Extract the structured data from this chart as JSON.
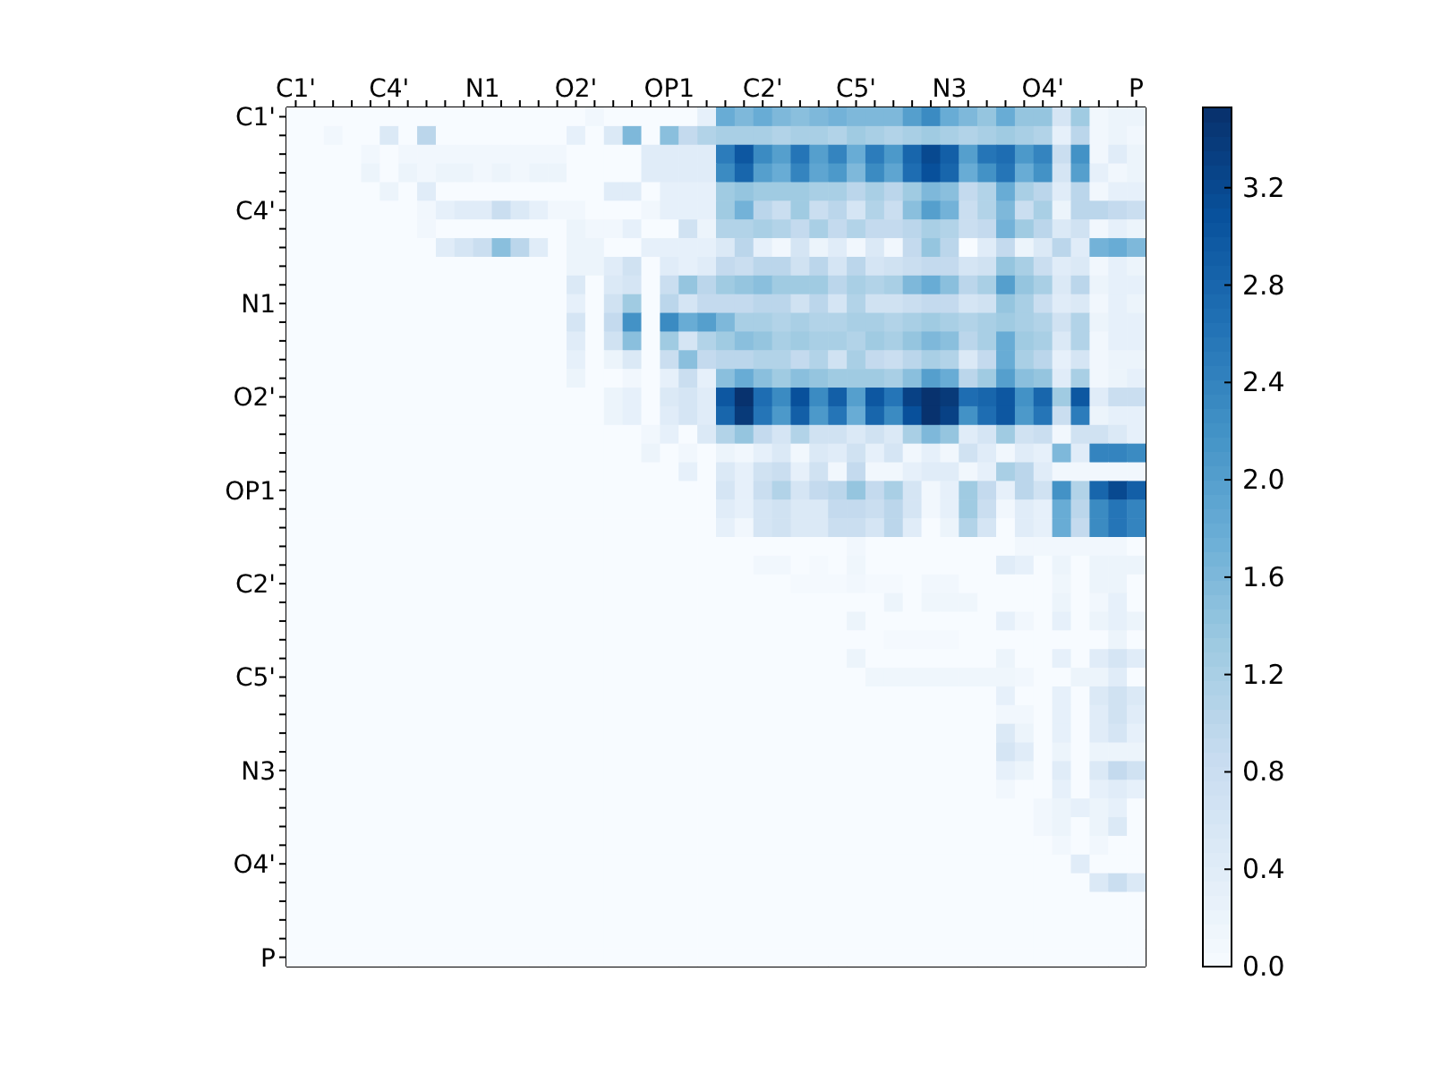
{
  "chart_data": {
    "type": "heatmap",
    "categories": [
      "C1'",
      null,
      null,
      null,
      null,
      "C4'",
      null,
      null,
      null,
      null,
      "N1",
      null,
      null,
      null,
      null,
      "O2'",
      null,
      null,
      null,
      null,
      "OP1",
      null,
      null,
      null,
      null,
      "C2'",
      null,
      null,
      null,
      null,
      "C5'",
      null,
      null,
      null,
      null,
      "N3",
      null,
      null,
      null,
      null,
      "O4'",
      null,
      null,
      null,
      null,
      "P"
    ],
    "y_categories": [
      "C1'",
      null,
      null,
      null,
      null,
      "C4'",
      null,
      null,
      null,
      null,
      "N1",
      null,
      null,
      null,
      null,
      "O2'",
      null,
      null,
      null,
      null,
      "OP1",
      null,
      null,
      null,
      null,
      "C2'",
      null,
      null,
      null,
      null,
      "C5'",
      null,
      null,
      null,
      null,
      "N3",
      null,
      null,
      null,
      null,
      "O4'",
      null,
      null,
      null,
      null,
      "P"
    ],
    "clim": [
      0,
      3.53
    ],
    "cticks": [
      {
        "value": 0,
        "label": "0.0"
      },
      {
        "value": 0.4,
        "label": "0.4"
      },
      {
        "value": 0.8,
        "label": "0.8"
      },
      {
        "value": 1.2,
        "label": "1.2"
      },
      {
        "value": 1.6,
        "label": "1.6"
      },
      {
        "value": 2,
        "label": "2.0"
      },
      {
        "value": 2.4,
        "label": "2.4"
      },
      {
        "value": 2.8,
        "label": "2.8"
      },
      {
        "value": 3.2,
        "label": "3.2"
      }
    ],
    "cells": [
      [
        0,
        0,
        0,
        0,
        0,
        0,
        0,
        0,
        0,
        0,
        0,
        0,
        0,
        0,
        0,
        0,
        0.1,
        0,
        0,
        0,
        0,
        0,
        0.3,
        1.8,
        1.6,
        1.8,
        1.6,
        1.5,
        1.6,
        1.7,
        1.6,
        1.6,
        1.6,
        2.0,
        2.3,
        1.8,
        1.6,
        1.4,
        1.8,
        1.4,
        1.4,
        0.6,
        1.3,
        0.1,
        0.2,
        0.2
      ],
      [
        0,
        0,
        0.1,
        0,
        0,
        0.5,
        0,
        1.0,
        0,
        0,
        0,
        0,
        0,
        0,
        0,
        0.3,
        0,
        0.5,
        1.6,
        0,
        1.5,
        0.9,
        1.1,
        1.2,
        1.2,
        1.2,
        1.1,
        1.2,
        1.2,
        1.1,
        1.3,
        1.2,
        1.1,
        1.2,
        1.3,
        1.2,
        1.1,
        1.2,
        1.3,
        1.2,
        1.1,
        0.3,
        1.0,
        0.1,
        0.2,
        0.1
      ],
      [
        0,
        0,
        0,
        0,
        0.1,
        0,
        0.1,
        0.1,
        0.1,
        0.1,
        0.1,
        0.1,
        0.1,
        0.1,
        0.1,
        0,
        0,
        0,
        0,
        0.4,
        0.4,
        0.4,
        0.4,
        2.5,
        3.0,
        2.3,
        2.0,
        2.6,
        2.0,
        2.4,
        1.8,
        2.5,
        2.1,
        2.8,
        3.2,
        2.9,
        2.0,
        2.6,
        2.7,
        2.1,
        2.4,
        0.8,
        2.2,
        0.1,
        0.4,
        0.2
      ],
      [
        0,
        0,
        0,
        0,
        0.2,
        0,
        0.2,
        0.1,
        0.2,
        0.2,
        0.1,
        0.2,
        0.1,
        0.2,
        0.2,
        0,
        0,
        0,
        0,
        0.4,
        0.4,
        0.4,
        0.4,
        2.3,
        2.8,
        2.0,
        1.8,
        2.4,
        1.9,
        2.1,
        1.6,
        2.3,
        1.9,
        2.7,
        3.1,
        2.8,
        1.8,
        2.2,
        2.6,
        1.8,
        2.2,
        0.6,
        2.0,
        0.3,
        0.1,
        0.2
      ],
      [
        0,
        0,
        0,
        0,
        0,
        0.2,
        0,
        0.4,
        0,
        0,
        0,
        0,
        0,
        0,
        0,
        0,
        0,
        0.4,
        0.4,
        0,
        0.3,
        0.3,
        0.3,
        1.3,
        1.4,
        1.3,
        1.3,
        1.3,
        1.2,
        1.2,
        1.0,
        1.2,
        1.0,
        1.3,
        1.6,
        1.5,
        0.9,
        1.1,
        1.8,
        1.2,
        1.0,
        0.4,
        1.0,
        0.1,
        0.3,
        0.3
      ],
      [
        0,
        0,
        0,
        0,
        0,
        0,
        0,
        0.1,
        0.3,
        0.4,
        0.4,
        0.8,
        0.5,
        0.3,
        0.1,
        0.1,
        0,
        0,
        0,
        0.1,
        0.3,
        0.3,
        0.3,
        1.3,
        1.7,
        1.0,
        0.8,
        1.3,
        0.8,
        1.0,
        0.6,
        1.1,
        0.8,
        1.5,
        2.0,
        1.7,
        0.8,
        1.1,
        1.6,
        0.8,
        1.2,
        0.2,
        1.0,
        1.0,
        0.9,
        0.8
      ],
      [
        0,
        0,
        0,
        0,
        0,
        0,
        0,
        0.1,
        0,
        0,
        0,
        0,
        0,
        0,
        0,
        0.2,
        0.1,
        0.1,
        0.3,
        0,
        0,
        0.7,
        0.2,
        1.1,
        1.1,
        1.2,
        1.1,
        0.9,
        1.2,
        0.9,
        1.1,
        0.9,
        0.9,
        1.0,
        1.2,
        1.1,
        0.8,
        0.9,
        1.7,
        1.3,
        1.0,
        0.5,
        0.7,
        0.1,
        0.3,
        0.2
      ],
      [
        0,
        0,
        0,
        0,
        0,
        0,
        0,
        0,
        0.4,
        0.6,
        0.8,
        1.5,
        1.0,
        0.4,
        0,
        0.2,
        0.2,
        0,
        0,
        0.3,
        0.3,
        0.3,
        0.3,
        0.5,
        1.0,
        0.3,
        0.1,
        0.6,
        0.2,
        0.4,
        0.1,
        0.5,
        0.1,
        0.9,
        1.4,
        1.0,
        0,
        0.4,
        0.9,
        0.2,
        0.5,
        1.0,
        0.4,
        1.7,
        1.8,
        1.6
      ],
      [
        0,
        0,
        0,
        0,
        0,
        0,
        0,
        0,
        0,
        0,
        0,
        0,
        0,
        0,
        0,
        0.2,
        0.2,
        0.4,
        0.7,
        0,
        0.4,
        0.3,
        0.4,
        0.9,
        0.8,
        1.0,
        1.0,
        0.7,
        1.0,
        0.6,
        1.0,
        0.6,
        0.7,
        0.8,
        0.9,
        0.9,
        0.6,
        0.7,
        1.4,
        1.2,
        0.8,
        0.4,
        0.5,
        0.1,
        0.3,
        0.2
      ],
      [
        0,
        0,
        0,
        0,
        0,
        0,
        0,
        0,
        0,
        0,
        0,
        0,
        0,
        0,
        0,
        0.5,
        0,
        0.5,
        0.6,
        0,
        0.8,
        1.4,
        1.0,
        1.3,
        1.4,
        1.5,
        1.3,
        1.3,
        1.3,
        1.0,
        1.2,
        1.1,
        1.2,
        1.6,
        1.8,
        1.5,
        1.0,
        1.2,
        2.0,
        1.4,
        1.2,
        0.5,
        1.0,
        0.2,
        0.3,
        0.3
      ],
      [
        0,
        0,
        0,
        0,
        0,
        0,
        0,
        0,
        0,
        0,
        0,
        0,
        0,
        0,
        0,
        0.3,
        0,
        0.7,
        1.3,
        0,
        1.0,
        0.6,
        0.9,
        0.9,
        0.9,
        1.0,
        1.0,
        0.7,
        1.0,
        0.6,
        1.1,
        0.7,
        0.7,
        0.8,
        0.9,
        0.9,
        0.6,
        0.7,
        1.4,
        1.2,
        0.8,
        0.4,
        0.5,
        0.1,
        0.3,
        0.2
      ],
      [
        0,
        0,
        0,
        0,
        0,
        0,
        0,
        0,
        0,
        0,
        0,
        0,
        0,
        0,
        0,
        0.6,
        0,
        0.9,
        2.2,
        0,
        2.3,
        1.8,
        2.0,
        1.6,
        1.2,
        1.2,
        1.1,
        1.2,
        1.1,
        1.1,
        1.2,
        1.2,
        1.1,
        1.2,
        1.3,
        1.2,
        1.1,
        1.2,
        1.3,
        1.2,
        1.1,
        0.7,
        1.1,
        0.2,
        0.3,
        0.3
      ],
      [
        0,
        0,
        0,
        0,
        0,
        0,
        0,
        0,
        0,
        0,
        0,
        0,
        0,
        0,
        0,
        0.4,
        0,
        0.7,
        1.5,
        0,
        1.3,
        0.6,
        1.1,
        1.3,
        1.5,
        1.4,
        1.2,
        1.3,
        1.2,
        1.2,
        1.1,
        1.3,
        1.2,
        1.4,
        1.6,
        1.5,
        1.0,
        1.2,
        1.8,
        1.3,
        1.2,
        0.5,
        1.1,
        0.1,
        0.3,
        0.3
      ],
      [
        0,
        0,
        0,
        0,
        0,
        0,
        0,
        0,
        0,
        0,
        0,
        0,
        0,
        0,
        0,
        0.3,
        0,
        0.2,
        0.5,
        0,
        0.8,
        1.5,
        0.9,
        1.0,
        1.0,
        1.1,
        1.1,
        0.9,
        1.1,
        0.7,
        1.2,
        0.9,
        0.8,
        1.0,
        1.2,
        1.1,
        0.5,
        0.9,
        1.8,
        1.2,
        1.0,
        0.3,
        0.6,
        0.1,
        0.2,
        0.2
      ],
      [
        0,
        0,
        0,
        0,
        0,
        0,
        0,
        0,
        0,
        0,
        0,
        0,
        0,
        0,
        0,
        0.2,
        0,
        0,
        0.1,
        0,
        0.3,
        0.8,
        0.3,
        1.5,
        1.8,
        1.5,
        1.3,
        1.5,
        1.4,
        1.3,
        1.3,
        1.3,
        1.2,
        1.5,
        2.0,
        1.8,
        1.0,
        1.3,
        2.0,
        1.5,
        1.4,
        0.4,
        1.2,
        0.1,
        0.2,
        0.3
      ],
      [
        0,
        0,
        0,
        0,
        0,
        0,
        0,
        0,
        0,
        0,
        0,
        0,
        0,
        0,
        0,
        0,
        0,
        0.2,
        0.3,
        0,
        0.5,
        0.6,
        0.4,
        3.0,
        3.5,
        2.7,
        2.3,
        3.1,
        2.3,
        2.9,
        2.0,
        3.0,
        2.6,
        3.3,
        3.5,
        3.4,
        2.7,
        2.8,
        3.0,
        2.2,
        2.8,
        1.3,
        3.0,
        0.4,
        0.8,
        0.8
      ],
      [
        0,
        0,
        0,
        0,
        0,
        0,
        0,
        0,
        0,
        0,
        0,
        0,
        0,
        0,
        0,
        0,
        0,
        0.2,
        0.3,
        0,
        0.4,
        0.6,
        0.4,
        2.8,
        3.4,
        2.6,
        2.1,
        2.9,
        2.1,
        2.6,
        1.8,
        2.8,
        2.3,
        3.1,
        3.5,
        3.3,
        2.2,
        2.7,
        3.0,
        2.1,
        2.6,
        0.8,
        2.5,
        0.2,
        0.3,
        0.3
      ],
      [
        0,
        0,
        0,
        0,
        0,
        0,
        0,
        0,
        0,
        0,
        0,
        0,
        0,
        0,
        0,
        0,
        0,
        0,
        0,
        0.1,
        0.3,
        0,
        0.5,
        1.1,
        1.4,
        0.9,
        0.6,
        1.1,
        0.7,
        0.7,
        0.5,
        0.7,
        0.5,
        1.2,
        1.6,
        1.4,
        0.4,
        0.6,
        1.3,
        0.7,
        0.8,
        0.1,
        0.7,
        0.7,
        0.5,
        0.3
      ],
      [
        0,
        0,
        0,
        0,
        0,
        0,
        0,
        0,
        0,
        0,
        0,
        0,
        0,
        0,
        0,
        0,
        0,
        0,
        0,
        0.2,
        0,
        0.1,
        0,
        0.2,
        0.1,
        0.3,
        0.5,
        0.1,
        0.5,
        0.4,
        0.7,
        0.3,
        0.6,
        0.1,
        0.3,
        0.1,
        0.7,
        0.4,
        0.1,
        0.4,
        0.3,
        1.6,
        0.4,
        2.4,
        2.4,
        2.3
      ],
      [
        0,
        0,
        0,
        0,
        0,
        0,
        0,
        0,
        0,
        0,
        0,
        0,
        0,
        0,
        0,
        0,
        0,
        0,
        0,
        0,
        0,
        0.3,
        0,
        0.5,
        0.3,
        0.7,
        0.8,
        0.3,
        0.7,
        0.1,
        0.9,
        0.1,
        0.1,
        0.3,
        0.4,
        0.4,
        0.1,
        0.3,
        1.2,
        1.0,
        0.4,
        0.1,
        0.1,
        0.1,
        0.1,
        0.1
      ],
      [
        0,
        0,
        0,
        0,
        0,
        0,
        0,
        0,
        0,
        0,
        0,
        0,
        0,
        0,
        0,
        0,
        0,
        0,
        0,
        0,
        0,
        0,
        0,
        0.6,
        0.3,
        0.8,
        1.1,
        0.6,
        0.9,
        1.0,
        1.4,
        0.9,
        1.2,
        0.6,
        0.1,
        0.3,
        1.3,
        0.9,
        0.3,
        1.0,
        0.7,
        2.2,
        1.1,
        2.8,
        3.2,
        2.9
      ],
      [
        0,
        0,
        0,
        0,
        0,
        0,
        0,
        0,
        0,
        0,
        0,
        0,
        0,
        0,
        0,
        0,
        0,
        0,
        0,
        0,
        0,
        0,
        0,
        0.4,
        0.3,
        0.6,
        0.7,
        0.5,
        0.5,
        0.9,
        0.9,
        0.8,
        1.0,
        0.6,
        0.1,
        0.3,
        1.3,
        0.8,
        0.1,
        0.4,
        0.3,
        1.8,
        1.0,
        2.3,
        2.6,
        2.4
      ],
      [
        0,
        0,
        0,
        0,
        0,
        0,
        0,
        0,
        0,
        0,
        0,
        0,
        0,
        0,
        0,
        0,
        0,
        0,
        0,
        0,
        0,
        0,
        0,
        0.3,
        0.1,
        0.6,
        0.7,
        0.5,
        0.5,
        0.8,
        0.8,
        0.6,
        1.0,
        0.4,
        0,
        0.2,
        1.1,
        0.6,
        0,
        0.4,
        0.3,
        1.8,
        0.9,
        2.3,
        2.6,
        2.4
      ],
      [
        0,
        0,
        0,
        0,
        0,
        0,
        0,
        0,
        0,
        0,
        0,
        0,
        0,
        0,
        0,
        0,
        0,
        0,
        0,
        0,
        0,
        0,
        0,
        0,
        0,
        0,
        0,
        0,
        0,
        0,
        0.1,
        0,
        0,
        0,
        0,
        0,
        0,
        0,
        0,
        0.1,
        0.1,
        0.1,
        0.1,
        0.1,
        0.1,
        0
      ],
      [
        0,
        0,
        0,
        0,
        0,
        0,
        0,
        0,
        0,
        0,
        0,
        0,
        0,
        0,
        0,
        0,
        0,
        0,
        0,
        0,
        0,
        0,
        0,
        0,
        0,
        0.1,
        0.1,
        0,
        0.05,
        0,
        0.15,
        0,
        0,
        0,
        0,
        0,
        0,
        0,
        0.4,
        0.3,
        0,
        0.2,
        0,
        0.2,
        0.2,
        0.2
      ],
      [
        0,
        0,
        0,
        0,
        0,
        0,
        0,
        0,
        0,
        0,
        0,
        0,
        0,
        0,
        0,
        0,
        0,
        0,
        0,
        0,
        0,
        0,
        0,
        0,
        0,
        0,
        0,
        0.05,
        0.05,
        0.05,
        0.1,
        0.05,
        0.05,
        0,
        0.1,
        0.1,
        0,
        0,
        0,
        0,
        0,
        0.15,
        0,
        0.2,
        0.2,
        0
      ],
      [
        0,
        0,
        0,
        0,
        0,
        0,
        0,
        0,
        0,
        0,
        0,
        0,
        0,
        0,
        0,
        0,
        0,
        0,
        0,
        0,
        0,
        0,
        0,
        0,
        0,
        0,
        0,
        0,
        0,
        0,
        0,
        0,
        0.2,
        0,
        0.15,
        0.15,
        0.15,
        0,
        0,
        0,
        0,
        0.2,
        0,
        0.1,
        0.3,
        0
      ],
      [
        0,
        0,
        0,
        0,
        0,
        0,
        0,
        0,
        0,
        0,
        0,
        0,
        0,
        0,
        0,
        0,
        0,
        0,
        0,
        0,
        0,
        0,
        0,
        0,
        0,
        0,
        0,
        0,
        0,
        0,
        0.2,
        0,
        0,
        0,
        0,
        0,
        0,
        0,
        0.3,
        0.1,
        0,
        0.3,
        0,
        0.2,
        0.3,
        0.2
      ],
      [
        0,
        0,
        0,
        0,
        0,
        0,
        0,
        0,
        0,
        0,
        0,
        0,
        0,
        0,
        0,
        0,
        0,
        0,
        0,
        0,
        0,
        0,
        0,
        0,
        0,
        0,
        0,
        0,
        0,
        0,
        0,
        0,
        0.05,
        0.05,
        0.05,
        0.05,
        0,
        0,
        0,
        0,
        0,
        0,
        0,
        0,
        0.2,
        0
      ],
      [
        0,
        0,
        0,
        0,
        0,
        0,
        0,
        0,
        0,
        0,
        0,
        0,
        0,
        0,
        0,
        0,
        0,
        0,
        0,
        0,
        0,
        0,
        0,
        0,
        0,
        0,
        0,
        0,
        0,
        0,
        0.2,
        0,
        0,
        0,
        0,
        0,
        0,
        0,
        0.2,
        0,
        0,
        0.3,
        0,
        0.4,
        0.6,
        0.4
      ],
      [
        0,
        0,
        0,
        0,
        0,
        0,
        0,
        0,
        0,
        0,
        0,
        0,
        0,
        0,
        0,
        0,
        0,
        0,
        0,
        0,
        0,
        0,
        0,
        0,
        0,
        0,
        0,
        0,
        0,
        0,
        0,
        0.15,
        0.15,
        0.15,
        0.15,
        0.15,
        0.15,
        0.15,
        0.15,
        0.1,
        0,
        0,
        0.2,
        0.2,
        0.4,
        0
      ],
      [
        0,
        0,
        0,
        0,
        0,
        0,
        0,
        0,
        0,
        0,
        0,
        0,
        0,
        0,
        0,
        0,
        0,
        0,
        0,
        0,
        0,
        0,
        0,
        0,
        0,
        0,
        0,
        0,
        0,
        0,
        0,
        0,
        0,
        0,
        0,
        0,
        0,
        0,
        0.3,
        0,
        0,
        0.3,
        0,
        0.5,
        0.7,
        0.5
      ],
      [
        0,
        0,
        0,
        0,
        0,
        0,
        0,
        0,
        0,
        0,
        0,
        0,
        0,
        0,
        0,
        0,
        0,
        0,
        0,
        0,
        0,
        0,
        0,
        0,
        0,
        0,
        0,
        0,
        0,
        0,
        0,
        0,
        0,
        0,
        0,
        0,
        0,
        0,
        0.1,
        0.1,
        0,
        0.3,
        0,
        0.4,
        0.7,
        0.4
      ],
      [
        0,
        0,
        0,
        0,
        0,
        0,
        0,
        0,
        0,
        0,
        0,
        0,
        0,
        0,
        0,
        0,
        0,
        0,
        0,
        0,
        0,
        0,
        0,
        0,
        0,
        0,
        0,
        0,
        0,
        0,
        0,
        0,
        0,
        0,
        0,
        0,
        0,
        0,
        0.5,
        0.2,
        0,
        0.3,
        0,
        0.4,
        0.6,
        0.3
      ],
      [
        0,
        0,
        0,
        0,
        0,
        0,
        0,
        0,
        0,
        0,
        0,
        0,
        0,
        0,
        0,
        0,
        0,
        0,
        0,
        0,
        0,
        0,
        0,
        0,
        0,
        0,
        0,
        0,
        0,
        0,
        0,
        0,
        0,
        0,
        0,
        0,
        0,
        0,
        0.6,
        0.4,
        0,
        0.2,
        0,
        0.2,
        0.2,
        0.2
      ],
      [
        0,
        0,
        0,
        0,
        0,
        0,
        0,
        0,
        0,
        0,
        0,
        0,
        0,
        0,
        0,
        0,
        0,
        0,
        0,
        0,
        0,
        0,
        0,
        0,
        0,
        0,
        0,
        0,
        0,
        0,
        0,
        0,
        0,
        0,
        0,
        0,
        0,
        0,
        0.3,
        0.2,
        0,
        0.4,
        0,
        0.5,
        0.9,
        0.7
      ],
      [
        0,
        0,
        0,
        0,
        0,
        0,
        0,
        0,
        0,
        0,
        0,
        0,
        0,
        0,
        0,
        0,
        0,
        0,
        0,
        0,
        0,
        0,
        0,
        0,
        0,
        0,
        0,
        0,
        0,
        0,
        0,
        0,
        0,
        0,
        0,
        0,
        0,
        0,
        0.1,
        0,
        0,
        0.3,
        0,
        0.3,
        0.4,
        0.3
      ],
      [
        0,
        0,
        0,
        0,
        0,
        0,
        0,
        0,
        0,
        0,
        0,
        0,
        0,
        0,
        0,
        0,
        0,
        0,
        0,
        0,
        0,
        0,
        0,
        0,
        0,
        0,
        0,
        0,
        0,
        0,
        0,
        0,
        0,
        0,
        0,
        0,
        0,
        0,
        0,
        0,
        0.1,
        0.2,
        0.3,
        0.2,
        0.3,
        0
      ],
      [
        0,
        0,
        0,
        0,
        0,
        0,
        0,
        0,
        0,
        0,
        0,
        0,
        0,
        0,
        0,
        0,
        0,
        0,
        0,
        0,
        0,
        0,
        0,
        0,
        0,
        0,
        0,
        0,
        0,
        0,
        0,
        0,
        0,
        0,
        0,
        0,
        0,
        0,
        0,
        0,
        0.1,
        0.2,
        0,
        0.2,
        0.5,
        0
      ],
      [
        0,
        0,
        0,
        0,
        0,
        0,
        0,
        0,
        0,
        0,
        0,
        0,
        0,
        0,
        0,
        0,
        0,
        0,
        0,
        0,
        0,
        0,
        0,
        0,
        0,
        0,
        0,
        0,
        0,
        0,
        0,
        0,
        0,
        0,
        0,
        0,
        0,
        0,
        0,
        0,
        0,
        0.1,
        0,
        0.1,
        0,
        0
      ],
      [
        0,
        0,
        0,
        0,
        0,
        0,
        0,
        0,
        0,
        0,
        0,
        0,
        0,
        0,
        0,
        0,
        0,
        0,
        0,
        0,
        0,
        0,
        0,
        0,
        0,
        0,
        0,
        0,
        0,
        0,
        0,
        0,
        0,
        0,
        0,
        0,
        0,
        0,
        0,
        0,
        0,
        0,
        0.4,
        0,
        0,
        0
      ],
      [
        0,
        0,
        0,
        0,
        0,
        0,
        0,
        0,
        0,
        0,
        0,
        0,
        0,
        0,
        0,
        0,
        0,
        0,
        0,
        0,
        0,
        0,
        0,
        0,
        0,
        0,
        0,
        0,
        0,
        0,
        0,
        0,
        0,
        0,
        0,
        0,
        0,
        0,
        0,
        0,
        0,
        0,
        0,
        0.5,
        0.8,
        0.5
      ],
      [
        0,
        0,
        0,
        0,
        0,
        0,
        0,
        0,
        0,
        0,
        0,
        0,
        0,
        0,
        0,
        0,
        0,
        0,
        0,
        0,
        0,
        0,
        0,
        0,
        0,
        0,
        0,
        0,
        0,
        0,
        0,
        0,
        0,
        0,
        0,
        0,
        0,
        0,
        0,
        0,
        0,
        0,
        0,
        0,
        0,
        0
      ],
      [
        0,
        0,
        0,
        0,
        0,
        0,
        0,
        0,
        0,
        0,
        0,
        0,
        0,
        0,
        0,
        0,
        0,
        0,
        0,
        0,
        0,
        0,
        0,
        0,
        0,
        0,
        0,
        0,
        0,
        0,
        0,
        0,
        0,
        0,
        0,
        0,
        0,
        0,
        0,
        0,
        0,
        0,
        0,
        0,
        0,
        0
      ],
      [
        0,
        0,
        0,
        0,
        0,
        0,
        0,
        0,
        0,
        0,
        0,
        0,
        0,
        0,
        0,
        0,
        0,
        0,
        0,
        0,
        0,
        0,
        0,
        0,
        0,
        0,
        0,
        0,
        0,
        0,
        0,
        0,
        0,
        0,
        0,
        0,
        0,
        0,
        0,
        0,
        0,
        0,
        0,
        0,
        0,
        0
      ],
      [
        0,
        0,
        0,
        0,
        0,
        0,
        0,
        0,
        0,
        0,
        0,
        0,
        0,
        0,
        0,
        0,
        0,
        0,
        0,
        0,
        0,
        0,
        0,
        0,
        0,
        0,
        0,
        0,
        0,
        0,
        0,
        0,
        0,
        0,
        0,
        0,
        0,
        0,
        0,
        0,
        0,
        0,
        0,
        0,
        0,
        0
      ]
    ]
  }
}
